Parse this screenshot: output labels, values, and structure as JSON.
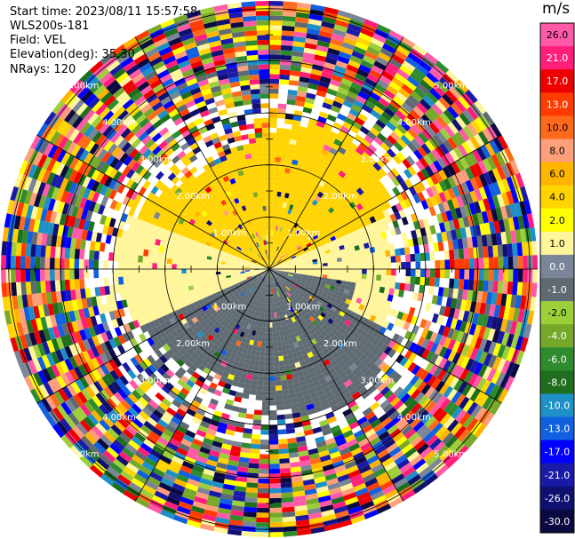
{
  "header": {
    "start_time": "Start time: 2023/08/11 15:57:58",
    "instrument": "WLS200s-181",
    "field": "Field: VEL",
    "elevation": "Elevation(deg): 35.30",
    "nrays": "NRays: 120"
  },
  "colorbar": {
    "unit": "m/s",
    "ticks": [
      "26.0",
      "21.0",
      "17.0",
      "13.0",
      "10.0",
      "8.0",
      "6.0",
      "4.0",
      "2.0",
      "1.0",
      "0.0",
      "-1.0",
      "-2.0",
      "-4.0",
      "-6.0",
      "-8.0",
      "-10.0",
      "-13.0",
      "-17.0",
      "-21.0",
      "-26.0",
      "-30.0"
    ],
    "colors": [
      "#ff59a8",
      "#ff1f7a",
      "#ee0000",
      "#ff3b00",
      "#ff6a1a",
      "#ff9e7a",
      "#ffb400",
      "#ffd400",
      "#ffff00",
      "#fff59a",
      "#7a8597",
      "#5f6a72",
      "#9ccf3a",
      "#76a82a",
      "#2e8b2e",
      "#1e6e1e",
      "#1e90c8",
      "#1060e0",
      "#0000ff",
      "#1a1aa8",
      "#101070",
      "#0a0a40"
    ]
  },
  "chart_data": {
    "type": "ppi",
    "field": "VEL",
    "rays": 120,
    "ring_labels": [
      "1.00km",
      "2.00km",
      "3.00km",
      "4.00km",
      "5.00km"
    ],
    "regions": [
      {
        "sector": "north-west to north-east",
        "range_km": [
          0,
          2.5
        ],
        "velocity_ms": 2.0
      },
      {
        "sector": "east-north-east",
        "range_km": [
          0,
          2.5
        ],
        "velocity_ms": 0.0
      },
      {
        "sector": "south-west to south-east",
        "range_km": [
          0,
          2.5
        ],
        "velocity_ms": -2.0
      },
      {
        "sector": "west",
        "range_km": [
          0,
          2.5
        ],
        "velocity_ms": 0.0
      },
      {
        "sector": "all",
        "range_km": [
          3.5,
          5.0
        ],
        "velocity_ms": "noise"
      }
    ]
  }
}
